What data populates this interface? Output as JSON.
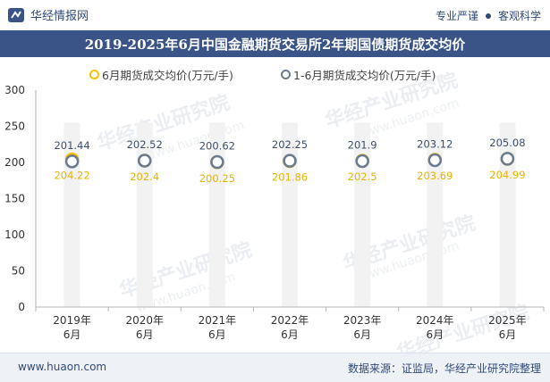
{
  "header": {
    "brand": "华经情报网",
    "tagline_left": "专业严谨",
    "tagline_right": "客观科学"
  },
  "footer": {
    "website": "www.huaon.com",
    "source": "数据来源：证监局，华经产业研究院整理"
  },
  "watermark": {
    "text": "华经产业研究院",
    "url": "www.huaon.com"
  },
  "colors": {
    "title_bg": "#3a5488",
    "series1": "#f5c200",
    "series2": "#6b7a8f",
    "bar": "#f2f2f2"
  },
  "chart_data": {
    "type": "line",
    "title": "2019-2025年6月中国金融期货交易所2年期国债期货成交均价",
    "categories": [
      "2019年\n6月",
      "2020年\n6月",
      "2021年\n6月",
      "2022年\n6月",
      "2023年\n6月",
      "2024年\n6月",
      "2025年\n6月"
    ],
    "series": [
      {
        "name": "6月期货成交均价(万元/手)",
        "values": [
          204.22,
          202.4,
          200.25,
          201.86,
          202.5,
          203.69,
          204.99
        ]
      },
      {
        "name": "1-6月期货成交均价(万元/手)",
        "values": [
          201.44,
          202.52,
          200.62,
          202.25,
          201.9,
          203.12,
          205.08
        ]
      }
    ],
    "ylim": [
      0,
      300
    ],
    "yticks": [
      0,
      50,
      100,
      150,
      200,
      250,
      300
    ],
    "legend": "top-center",
    "grid": false
  }
}
